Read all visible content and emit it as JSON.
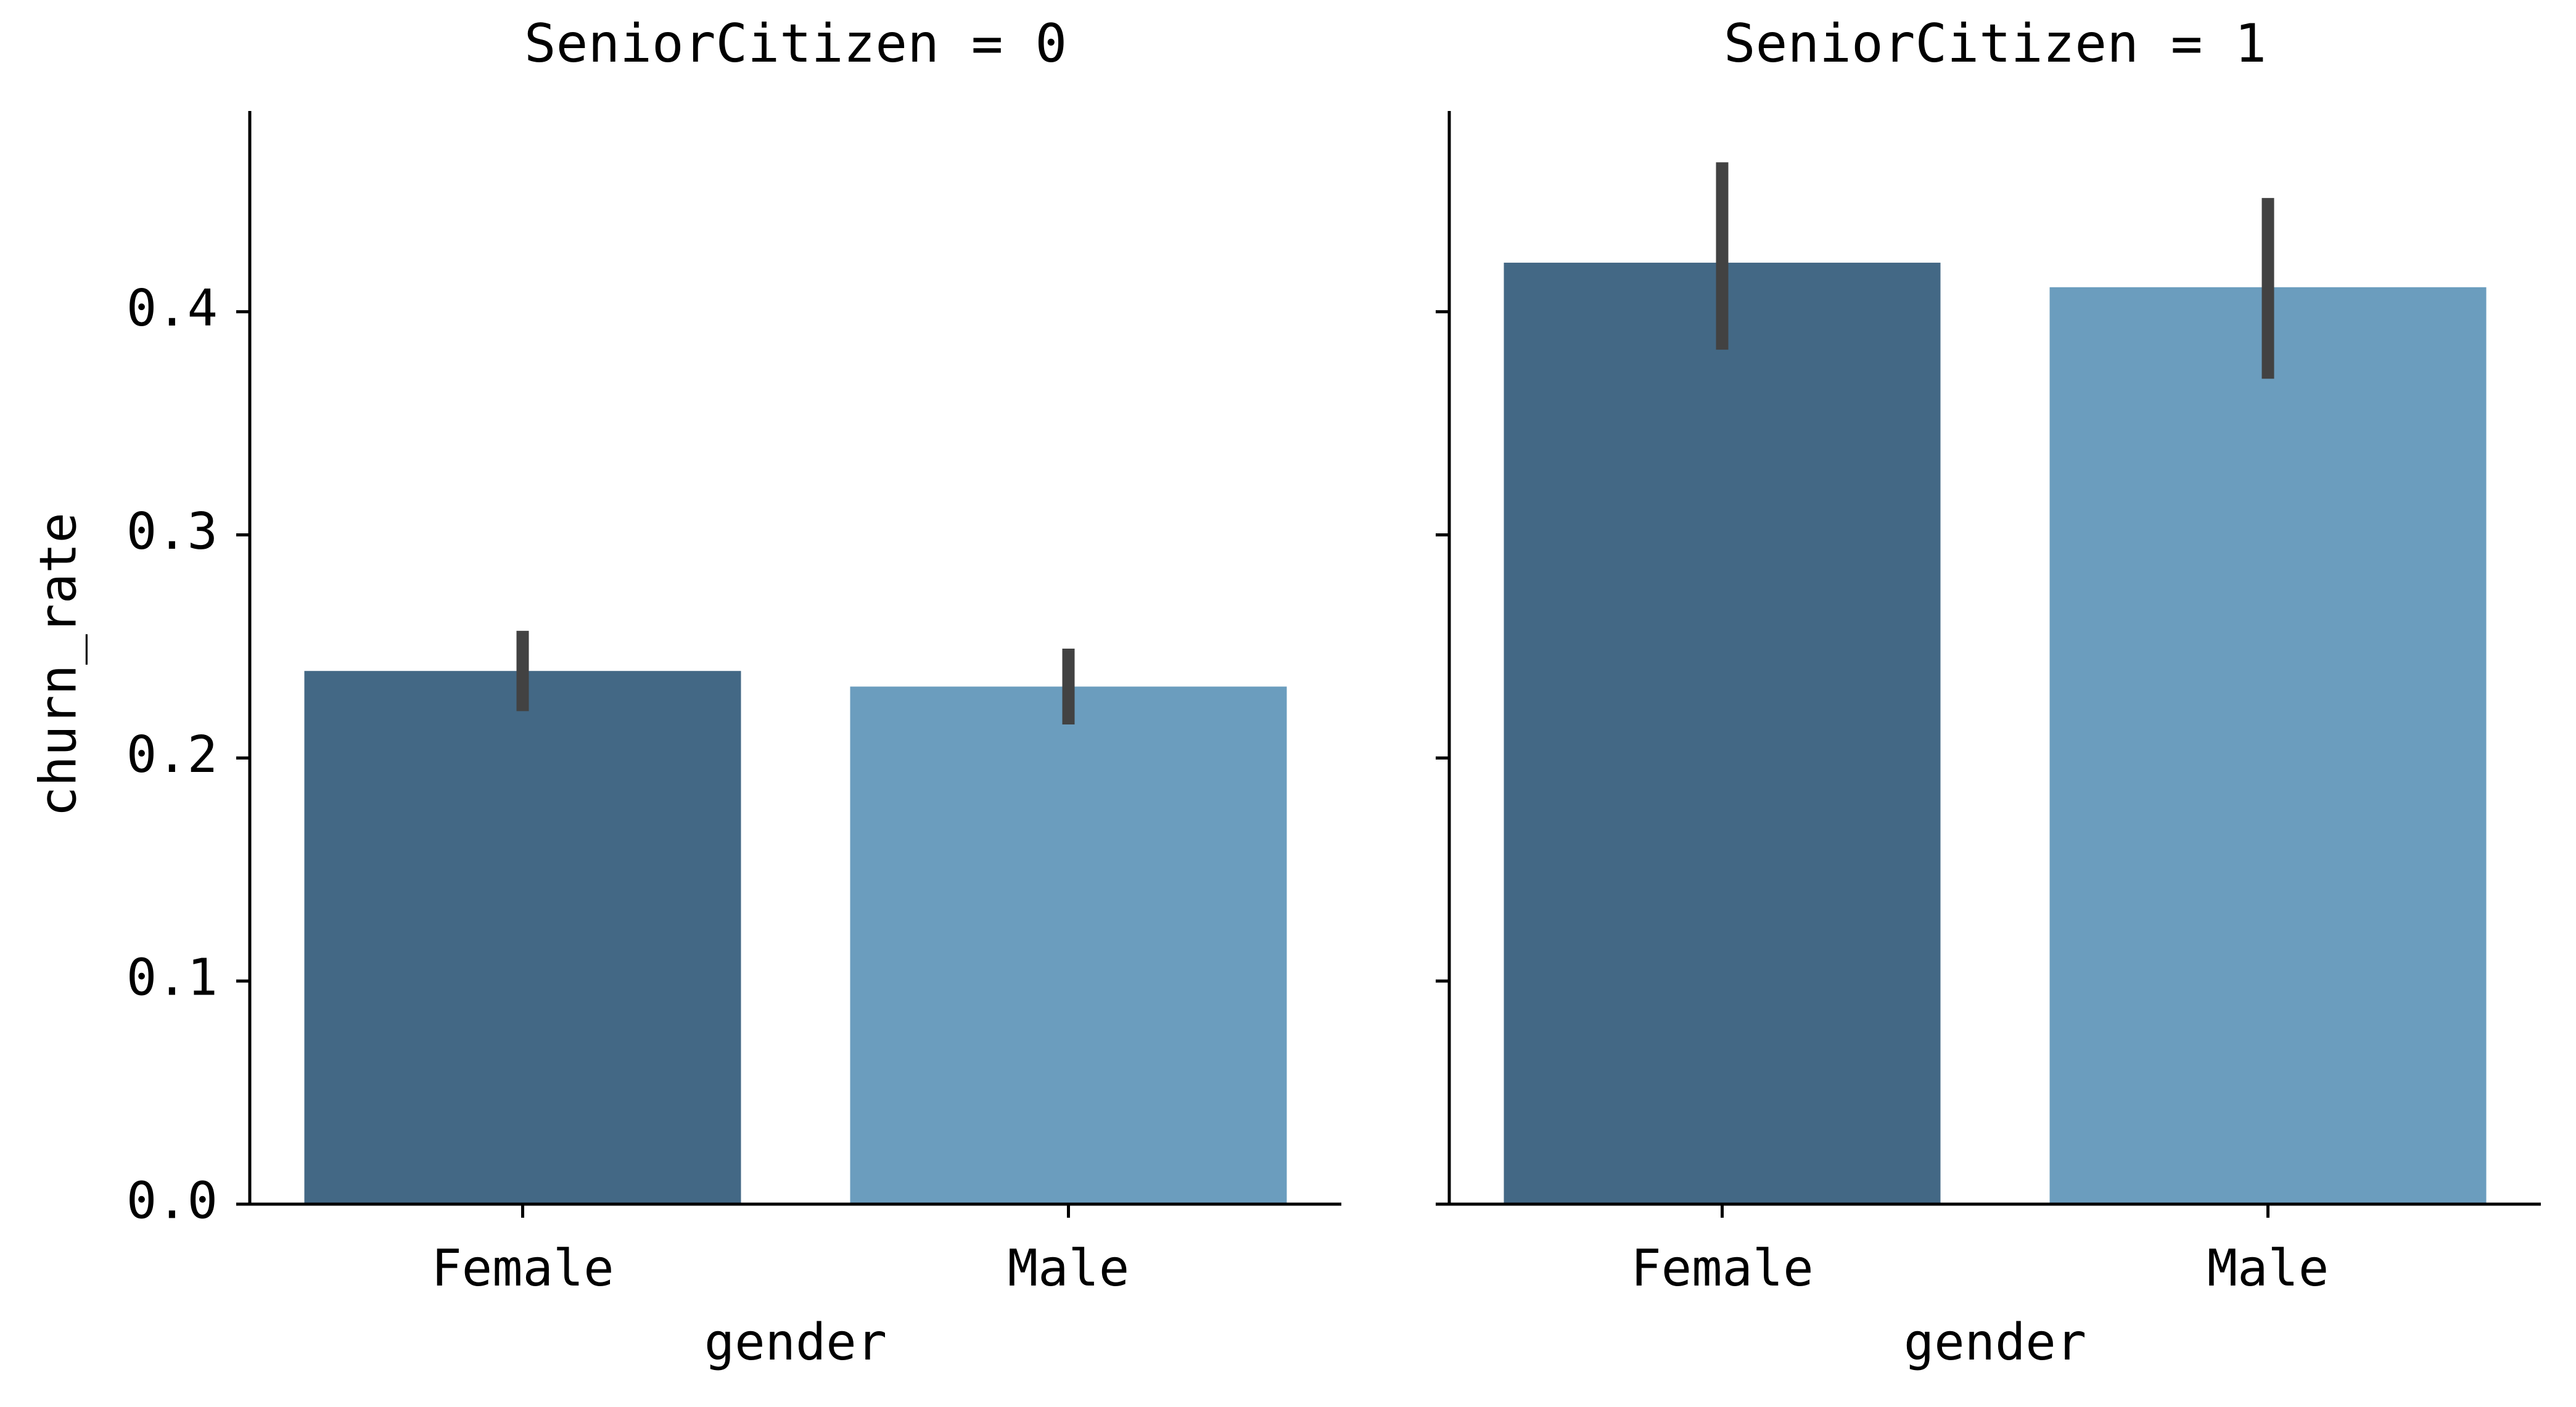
{
  "chart_data": {
    "type": "bar",
    "y_label": "churn_rate",
    "ylim": [
      0,
      0.49
    ],
    "y_ticks": [
      0.0,
      0.1,
      0.2,
      0.3,
      0.4
    ],
    "y_tick_labels": [
      "0.0",
      "0.1",
      "0.2",
      "0.3",
      "0.4"
    ],
    "grid": false,
    "facet_titles": [
      "SeniorCitizen = 0",
      "SeniorCitizen = 1"
    ],
    "x_label": "gender",
    "categories": [
      "Female",
      "Male"
    ],
    "bar_colors": [
      "#436885",
      "#6b9dbe"
    ],
    "errorbar_color": "#424242",
    "facets": [
      {
        "title": "SeniorCitizen = 0",
        "values": [
          0.239,
          0.232
        ],
        "error_low": [
          0.221,
          0.215
        ],
        "error_high": [
          0.257,
          0.249
        ]
      },
      {
        "title": "SeniorCitizen = 1",
        "values": [
          0.422,
          0.411
        ],
        "error_low": [
          0.383,
          0.37
        ],
        "error_high": [
          0.467,
          0.451
        ]
      }
    ]
  }
}
